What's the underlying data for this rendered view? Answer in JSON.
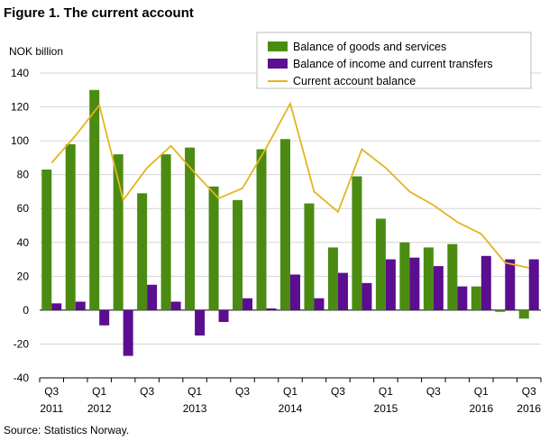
{
  "title": "Figure 1. The current account",
  "source": "Source: Statistics Norway.",
  "chart_data": {
    "type": "bar",
    "ylabel": "NOK billion",
    "ylim": [
      -40,
      140
    ],
    "yticks": [
      -40,
      -20,
      0,
      20,
      40,
      60,
      80,
      100,
      120,
      140
    ],
    "grid": true,
    "legend_position": "top-right",
    "categories": [
      "2011Q3",
      "2011Q4",
      "2012Q1",
      "2012Q2",
      "2012Q3",
      "2012Q4",
      "2013Q1",
      "2013Q2",
      "2013Q3",
      "2013Q4",
      "2014Q1",
      "2014Q2",
      "2014Q3",
      "2014Q4",
      "2015Q1",
      "2015Q2",
      "2015Q3",
      "2015Q4",
      "2016Q1",
      "2016Q2",
      "2016Q3"
    ],
    "xtick_labels": [
      {
        "index": 0,
        "line1": "Q3",
        "line2": "2011"
      },
      {
        "index": 2,
        "line1": "Q1",
        "line2": "2012"
      },
      {
        "index": 4,
        "line1": "Q3",
        "line2": ""
      },
      {
        "index": 6,
        "line1": "Q1",
        "line2": "2013"
      },
      {
        "index": 8,
        "line1": "Q3",
        "line2": ""
      },
      {
        "index": 10,
        "line1": "Q1",
        "line2": "2014"
      },
      {
        "index": 12,
        "line1": "Q3",
        "line2": ""
      },
      {
        "index": 14,
        "line1": "Q1",
        "line2": "2015"
      },
      {
        "index": 16,
        "line1": "Q3",
        "line2": ""
      },
      {
        "index": 18,
        "line1": "Q1",
        "line2": "2016"
      },
      {
        "index": 20,
        "line1": "Q3",
        "line2": "2016"
      }
    ],
    "series": [
      {
        "name": "Balance of goods and services",
        "kind": "bar",
        "color": "#4b8b12",
        "values": [
          83,
          98,
          130,
          92,
          69,
          92,
          96,
          73,
          65,
          95,
          101,
          63,
          37,
          79,
          54,
          40,
          37,
          39,
          14,
          -1,
          -5
        ]
      },
      {
        "name": "Balance of income and current transfers",
        "kind": "bar",
        "color": "#5b0e8f",
        "values": [
          4,
          5,
          -9,
          -27,
          15,
          5,
          -15,
          -7,
          7,
          1,
          21,
          7,
          22,
          16,
          30,
          31,
          26,
          14,
          32,
          30,
          30
        ]
      },
      {
        "name": "Current account balance",
        "kind": "line",
        "color": "#e2b521",
        "values": [
          87,
          103,
          121,
          65,
          84,
          97,
          81,
          66,
          72,
          96,
          122,
          70,
          58,
          95,
          84,
          70,
          62,
          52,
          45,
          28,
          25
        ]
      }
    ]
  }
}
